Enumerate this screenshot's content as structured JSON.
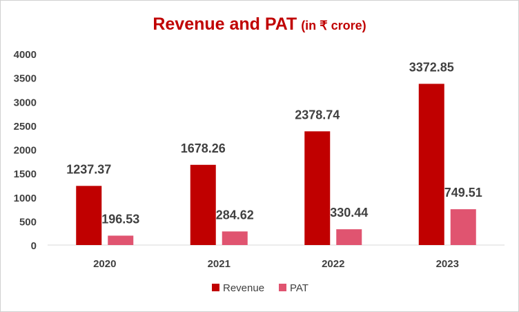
{
  "chart_data": {
    "type": "bar",
    "title": "Revenue and PAT",
    "subtitle": "(in ₹ crore)",
    "categories": [
      "2020",
      "2021",
      "2022",
      "2023"
    ],
    "series": [
      {
        "name": "Revenue",
        "values": [
          1237.37,
          1678.26,
          2378.74,
          3372.85
        ],
        "labels": [
          "1237.37",
          "1678.26",
          "2378.74",
          "3372.85"
        ],
        "color": "#c00000"
      },
      {
        "name": "PAT",
        "values": [
          196.53,
          284.62,
          330.44,
          749.51
        ],
        "labels": [
          "196.53",
          "284.62",
          "330.44",
          "749.51"
        ],
        "color": "#e05470"
      }
    ],
    "ylim": [
      0,
      4000
    ],
    "yticks": [
      "0",
      "500",
      "1000",
      "1500",
      "2000",
      "2500",
      "3000",
      "3500",
      "4000"
    ],
    "grid": false,
    "legend": "bottom"
  }
}
